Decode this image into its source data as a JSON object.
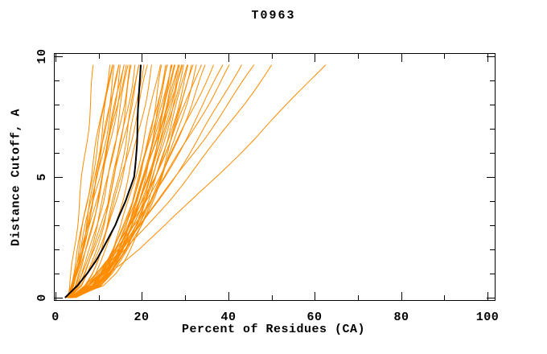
{
  "page": {
    "background": "#ffffff"
  },
  "chart_data": {
    "type": "line",
    "title": "T0963",
    "xlabel": "Percent of Residues (CA)",
    "ylabel": "Distance Cutoff, A",
    "xlim": [
      0,
      100
    ],
    "ylim": [
      0,
      10
    ],
    "grid": false,
    "legend": "none",
    "x_ticks": {
      "major": [
        0,
        20,
        40,
        60,
        80,
        100
      ],
      "minor": [
        10,
        30,
        50,
        70,
        90
      ]
    },
    "y_ticks": {
      "major": [
        0,
        5,
        10
      ],
      "minor": [
        1,
        2,
        3,
        4,
        6,
        7,
        8,
        9
      ]
    },
    "colors": {
      "model": "#ff8c00",
      "highlight": "#000000",
      "axis": "#000000"
    },
    "cutoffs": [
      0,
      0.5,
      1,
      1.5,
      2,
      3,
      4,
      5,
      6.5,
      8,
      9.65
    ],
    "highlight_series": {
      "name": "highlighted-model",
      "percents": [
        2.2,
        5.1,
        7.3,
        9.2,
        10.8,
        13.9,
        16.3,
        18.1,
        18.8,
        19.2,
        19.6
      ]
    },
    "model_series": [
      [
        3,
        3.4,
        3.8,
        4.1,
        4.4,
        5,
        5.6,
        6.2,
        7.1,
        7.9,
        8.8
      ],
      [
        2.8,
        3.6,
        4.2,
        4.8,
        5.3,
        6.4,
        7.4,
        8.3,
        9.7,
        11.1,
        12.5
      ],
      [
        3.2,
        4.1,
        4.8,
        5.5,
        6,
        7.1,
        8.1,
        9.1,
        10.5,
        11.8,
        13.2
      ],
      [
        2.6,
        3.8,
        4.6,
        5.4,
        6,
        7.3,
        8.4,
        9.4,
        10.9,
        12.3,
        13.8
      ],
      [
        3.4,
        4.2,
        4.8,
        5.4,
        6,
        7.2,
        8.3,
        9.4,
        11,
        12.6,
        14.3
      ],
      [
        2.9,
        4,
        4.8,
        5.6,
        6.3,
        7.6,
        8.8,
        9.9,
        11.6,
        13.1,
        14.8
      ],
      [
        3.1,
        4.6,
        5.6,
        6.4,
        7.1,
        8.4,
        9.6,
        10.7,
        12.3,
        13.7,
        15.2
      ],
      [
        2.7,
        3.7,
        4.6,
        5.3,
        6.1,
        7.5,
        8.8,
        10.1,
        11.9,
        13.7,
        15.6
      ],
      [
        3.3,
        4.7,
        5.6,
        6.4,
        7.2,
        8.6,
        9.9,
        11.1,
        12.7,
        14.3,
        16
      ],
      [
        2.5,
        3.8,
        4.8,
        5.6,
        6.4,
        8,
        9.4,
        10.7,
        12.6,
        14.5,
        16.4
      ],
      [
        3,
        5,
        6.2,
        7.1,
        8,
        9.5,
        10.8,
        12,
        13.7,
        15.2,
        16.8
      ],
      [
        3.5,
        5.2,
        6.3,
        7.3,
        8.1,
        9.6,
        11,
        12.2,
        14,
        15.6,
        17.3
      ],
      [
        2.9,
        3.6,
        4.3,
        4.9,
        5.4,
        6.5,
        7.6,
        8.6,
        10,
        11.5,
        13
      ],
      [
        3.2,
        6.1,
        7.4,
        8.4,
        9.3,
        10.9,
        12.2,
        13.4,
        15,
        16.4,
        17.8
      ],
      [
        2.8,
        5.4,
        6.8,
        7.9,
        8.9,
        10.5,
        12,
        13.3,
        15.1,
        16.7,
        18.4
      ],
      [
        3.6,
        7.1,
        8.6,
        9.7,
        10.6,
        12.2,
        13.5,
        14.7,
        16.2,
        17.6,
        19
      ],
      [
        3,
        5.4,
        6.8,
        7.9,
        9,
        10.8,
        12.4,
        13.8,
        15.8,
        17.7,
        19.6
      ],
      [
        3.4,
        6.7,
        8.3,
        9.5,
        10.6,
        12.3,
        13.9,
        15.2,
        17.1,
        18.7,
        20.4
      ],
      [
        2.9,
        6,
        7.6,
        8.9,
        10,
        12,
        13.7,
        15.2,
        17.3,
        19.3,
        21.2
      ],
      [
        3.3,
        7.6,
        9.4,
        10.8,
        11.9,
        13.9,
        15.5,
        17,
        18.9,
        20.6,
        22.3
      ],
      [
        3.8,
        8.5,
        10.4,
        11.8,
        13.1,
        15.2,
        16.9,
        18.5,
        20.5,
        22.4,
        24.2
      ],
      [
        3.2,
        8.9,
        11,
        12.6,
        13.8,
        16,
        17.7,
        19.3,
        21.3,
        23.1,
        24.8
      ],
      [
        4.2,
        9,
        11,
        12.5,
        13.8,
        16,
        17.8,
        19.4,
        21.5,
        23.4,
        25.3
      ],
      [
        3.5,
        9.9,
        12,
        13.7,
        15,
        17.1,
        18.9,
        20.4,
        22.4,
        24.1,
        25.8
      ],
      [
        4,
        8.4,
        10.4,
        12,
        13.3,
        15.7,
        17.7,
        19.5,
        21.9,
        24,
        26.2
      ],
      [
        3,
        8.7,
        11,
        12.7,
        14.1,
        16.5,
        18.5,
        20.2,
        22.5,
        24.6,
        26.6
      ],
      [
        4.5,
        9.6,
        11.7,
        13.4,
        14.7,
        17.1,
        19,
        20.7,
        23,
        25,
        27
      ],
      [
        3.8,
        9.7,
        11.9,
        13.6,
        15,
        17.3,
        19.2,
        20.9,
        23.1,
        25.1,
        26.9
      ],
      [
        3.6,
        9.9,
        12.2,
        13.9,
        15.3,
        17.7,
        19.6,
        21.3,
        23.5,
        25.5,
        27.4
      ],
      [
        3.2,
        8.5,
        10.8,
        12.5,
        14,
        16.6,
        18.8,
        20.7,
        23.2,
        25.5,
        27.8
      ],
      [
        4.1,
        10.1,
        12.4,
        14.1,
        15.6,
        18,
        20,
        21.8,
        24.1,
        26.2,
        28.2
      ],
      [
        3.4,
        9.1,
        11.5,
        13.3,
        14.9,
        17.5,
        19.6,
        21.5,
        24.1,
        26.3,
        28.6
      ],
      [
        3.5,
        9.5,
        11.9,
        13.7,
        15.3,
        17.9,
        20,
        21.9,
        24.4,
        26.6,
        28.9
      ],
      [
        4.4,
        9.2,
        11.5,
        13.2,
        14.8,
        17.3,
        19.6,
        21.5,
        24.2,
        26.6,
        29
      ],
      [
        3.1,
        10.3,
        12.8,
        14.7,
        16.3,
        18.8,
        21,
        22.8,
        25.2,
        27.4,
        29.4
      ],
      [
        3.9,
        9.4,
        11.9,
        13.7,
        15.3,
        18,
        20.3,
        22.3,
        25,
        27.4,
        29.8
      ],
      [
        3.3,
        9.8,
        12.4,
        14.3,
        16,
        18.7,
        21,
        23,
        25.6,
        28,
        30.3
      ],
      [
        4.6,
        10.6,
        13,
        14.9,
        16.5,
        19.2,
        21.5,
        23.5,
        26.1,
        28.4,
        30.8
      ],
      [
        3.7,
        11,
        13.7,
        15.7,
        17.3,
        20.1,
        22.3,
        24.3,
        26.9,
        29.2,
        31.4
      ],
      [
        3,
        8.7,
        11.3,
        13.4,
        15.2,
        18.3,
        20.9,
        23.2,
        26.3,
        29.2,
        32
      ],
      [
        4,
        10.5,
        13.2,
        15.3,
        17,
        20,
        22.4,
        24.6,
        27.5,
        30,
        32.6
      ],
      [
        3.5,
        7.9,
        10.4,
        12.4,
        14.3,
        17.5,
        20.4,
        23.1,
        26.7,
        30.1,
        33.5
      ],
      [
        3,
        8.4,
        11.2,
        13.5,
        15.4,
        18.9,
        21.9,
        24.6,
        28.2,
        31.6,
        35
      ],
      [
        3.8,
        7.4,
        9.8,
        11.9,
        13.9,
        17.4,
        20.7,
        23.8,
        28.1,
        32.2,
        36.5
      ],
      [
        3.2,
        7.6,
        10.4,
        12.8,
        15,
        18.8,
        22.3,
        25.5,
        29.9,
        34.2,
        38.5
      ],
      [
        3.6,
        7.1,
        9.6,
        11.9,
        14.1,
        18.1,
        21.8,
        25.4,
        30.5,
        35.4,
        40.5
      ],
      [
        3,
        7.4,
        10.3,
        12.9,
        15.3,
        19.7,
        23.7,
        27.4,
        32.8,
        37.8,
        43
      ],
      [
        3.4,
        6.9,
        9.6,
        12.1,
        14.6,
        19.2,
        23.6,
        27.8,
        33.9,
        39.7,
        46
      ],
      [
        3.1,
        7.5,
        10.7,
        13.7,
        16.4,
        21.5,
        26.3,
        30.8,
        37.3,
        43.5,
        50
      ],
      [
        3.5,
        8.3,
        12.1,
        15.6,
        19,
        25.3,
        31.4,
        37.2,
        45.7,
        53.8,
        62.5
      ]
    ]
  }
}
